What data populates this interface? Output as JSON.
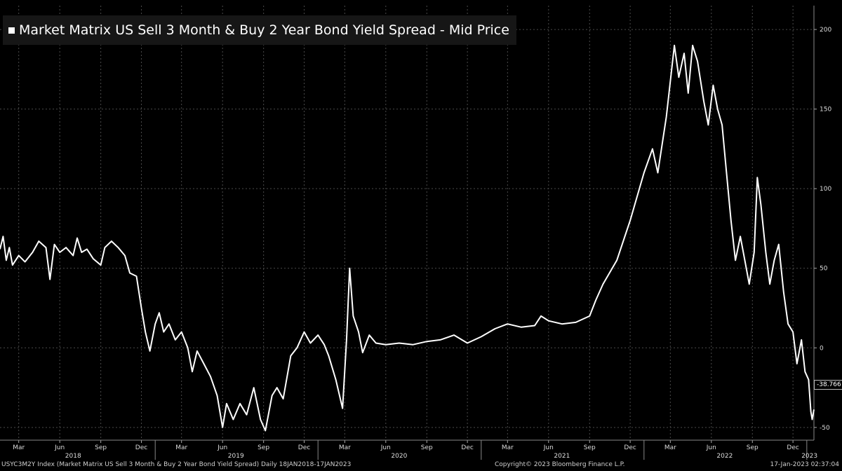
{
  "legend": {
    "title": "Market Matrix US Sell 3 Month & Buy 2 Year Bond Yield Spread - Mid Price"
  },
  "footer": {
    "left": "USYC3M2Y Index (Market Matrix US Sell 3 Month & Buy 2 Year Bond Yield Spread)  Daily 18JAN2018-17JAN2023",
    "center": "Copyright© 2023 Bloomberg Finance L.P.",
    "right": "17-Jan-2023 02:37:04"
  },
  "last_value_label": "-38.766",
  "colors": {
    "background": "#000000",
    "line": "#ffffff",
    "grid": "#4a4a4a",
    "legend_bg": "#161616"
  },
  "chart_data": {
    "type": "line",
    "title": "Market Matrix US Sell 3 Month & Buy 2 Year Bond Yield Spread - Mid Price",
    "xlim": [
      "2018-01-18",
      "2023-01-17"
    ],
    "ylim": [
      -58,
      215
    ],
    "y_ticks": [
      -50,
      0,
      50,
      100,
      150,
      200
    ],
    "y_axis_position": "right",
    "grid": true,
    "legend_position": "top-left",
    "month_ticks": [
      {
        "date": "2018-03-01",
        "label": "Mar"
      },
      {
        "date": "2018-06-01",
        "label": "Jun"
      },
      {
        "date": "2018-09-01",
        "label": "Sep"
      },
      {
        "date": "2018-12-01",
        "label": "Dec"
      },
      {
        "date": "2019-03-01",
        "label": "Mar"
      },
      {
        "date": "2019-06-01",
        "label": "Jun"
      },
      {
        "date": "2019-09-01",
        "label": "Sep"
      },
      {
        "date": "2019-12-01",
        "label": "Dec"
      },
      {
        "date": "2020-03-01",
        "label": "Mar"
      },
      {
        "date": "2020-06-01",
        "label": "Jun"
      },
      {
        "date": "2020-09-01",
        "label": "Sep"
      },
      {
        "date": "2020-12-01",
        "label": "Dec"
      },
      {
        "date": "2021-03-01",
        "label": "Mar"
      },
      {
        "date": "2021-06-01",
        "label": "Jun"
      },
      {
        "date": "2021-09-01",
        "label": "Sep"
      },
      {
        "date": "2021-12-01",
        "label": "Dec"
      },
      {
        "date": "2022-03-01",
        "label": "Mar"
      },
      {
        "date": "2022-06-01",
        "label": "Jun"
      },
      {
        "date": "2022-09-01",
        "label": "Sep"
      },
      {
        "date": "2022-12-01",
        "label": "Dec"
      }
    ],
    "year_labels": [
      {
        "date": "2018-07-01",
        "label": "2018"
      },
      {
        "date": "2019-07-01",
        "label": "2019"
      },
      {
        "date": "2020-07-01",
        "label": "2020"
      },
      {
        "date": "2021-07-01",
        "label": "2021"
      },
      {
        "date": "2022-07-01",
        "label": "2022"
      },
      {
        "date": "2023-01-07",
        "label": "2023"
      }
    ],
    "series": [
      {
        "points": [
          [
            "2018-01-18",
            62
          ],
          [
            "2018-01-25",
            70
          ],
          [
            "2018-02-01",
            55
          ],
          [
            "2018-02-08",
            63
          ],
          [
            "2018-02-15",
            52
          ],
          [
            "2018-03-01",
            58
          ],
          [
            "2018-03-15",
            54
          ],
          [
            "2018-04-01",
            60
          ],
          [
            "2018-04-15",
            67
          ],
          [
            "2018-05-01",
            63
          ],
          [
            "2018-05-10",
            43
          ],
          [
            "2018-05-20",
            65
          ],
          [
            "2018-06-01",
            60
          ],
          [
            "2018-06-15",
            63
          ],
          [
            "2018-07-01",
            58
          ],
          [
            "2018-07-10",
            69
          ],
          [
            "2018-07-20",
            60
          ],
          [
            "2018-08-01",
            62
          ],
          [
            "2018-08-15",
            56
          ],
          [
            "2018-09-01",
            52
          ],
          [
            "2018-09-10",
            63
          ],
          [
            "2018-09-25",
            67
          ],
          [
            "2018-10-10",
            63
          ],
          [
            "2018-10-25",
            58
          ],
          [
            "2018-11-05",
            47
          ],
          [
            "2018-11-20",
            45
          ],
          [
            "2018-12-01",
            25
          ],
          [
            "2018-12-10",
            10
          ],
          [
            "2018-12-20",
            -2
          ],
          [
            "2019-01-01",
            15
          ],
          [
            "2019-01-10",
            22
          ],
          [
            "2019-01-20",
            10
          ],
          [
            "2019-02-01",
            15
          ],
          [
            "2019-02-15",
            5
          ],
          [
            "2019-03-01",
            10
          ],
          [
            "2019-03-15",
            0
          ],
          [
            "2019-03-25",
            -15
          ],
          [
            "2019-04-05",
            -2
          ],
          [
            "2019-04-20",
            -10
          ],
          [
            "2019-05-05",
            -18
          ],
          [
            "2019-05-20",
            -30
          ],
          [
            "2019-06-01",
            -50
          ],
          [
            "2019-06-10",
            -35
          ],
          [
            "2019-06-25",
            -45
          ],
          [
            "2019-07-10",
            -35
          ],
          [
            "2019-07-25",
            -42
          ],
          [
            "2019-08-10",
            -25
          ],
          [
            "2019-08-25",
            -45
          ],
          [
            "2019-09-05",
            -52
          ],
          [
            "2019-09-20",
            -30
          ],
          [
            "2019-10-01",
            -25
          ],
          [
            "2019-10-15",
            -32
          ],
          [
            "2019-11-01",
            -5
          ],
          [
            "2019-11-15",
            0
          ],
          [
            "2019-12-01",
            10
          ],
          [
            "2019-12-15",
            3
          ],
          [
            "2020-01-01",
            8
          ],
          [
            "2020-01-15",
            2
          ],
          [
            "2020-01-25",
            -5
          ],
          [
            "2020-02-10",
            -20
          ],
          [
            "2020-02-25",
            -38
          ],
          [
            "2020-03-05",
            5
          ],
          [
            "2020-03-12",
            50
          ],
          [
            "2020-03-20",
            20
          ],
          [
            "2020-04-01",
            10
          ],
          [
            "2020-04-10",
            -3
          ],
          [
            "2020-04-25",
            8
          ],
          [
            "2020-05-10",
            3
          ],
          [
            "2020-06-01",
            2
          ],
          [
            "2020-07-01",
            3
          ],
          [
            "2020-08-01",
            2
          ],
          [
            "2020-09-01",
            4
          ],
          [
            "2020-10-01",
            5
          ],
          [
            "2020-11-01",
            8
          ],
          [
            "2020-12-01",
            3
          ],
          [
            "2021-01-01",
            7
          ],
          [
            "2021-02-01",
            12
          ],
          [
            "2021-03-01",
            15
          ],
          [
            "2021-04-01",
            13
          ],
          [
            "2021-05-01",
            14
          ],
          [
            "2021-05-15",
            20
          ],
          [
            "2021-06-01",
            17
          ],
          [
            "2021-07-01",
            15
          ],
          [
            "2021-08-01",
            16
          ],
          [
            "2021-09-01",
            20
          ],
          [
            "2021-09-15",
            30
          ],
          [
            "2021-10-01",
            40
          ],
          [
            "2021-11-01",
            55
          ],
          [
            "2021-12-01",
            80
          ],
          [
            "2022-01-01",
            110
          ],
          [
            "2022-01-20",
            125
          ],
          [
            "2022-02-01",
            110
          ],
          [
            "2022-02-20",
            145
          ],
          [
            "2022-03-10",
            190
          ],
          [
            "2022-03-20",
            170
          ],
          [
            "2022-04-01",
            185
          ],
          [
            "2022-04-10",
            160
          ],
          [
            "2022-04-20",
            190
          ],
          [
            "2022-05-01",
            180
          ],
          [
            "2022-05-15",
            155
          ],
          [
            "2022-05-25",
            140
          ],
          [
            "2022-06-05",
            165
          ],
          [
            "2022-06-15",
            150
          ],
          [
            "2022-06-25",
            140
          ],
          [
            "2022-07-05",
            110
          ],
          [
            "2022-07-15",
            80
          ],
          [
            "2022-07-25",
            55
          ],
          [
            "2022-08-05",
            70
          ],
          [
            "2022-08-15",
            55
          ],
          [
            "2022-08-25",
            40
          ],
          [
            "2022-09-05",
            60
          ],
          [
            "2022-09-12",
            107
          ],
          [
            "2022-09-20",
            90
          ],
          [
            "2022-10-01",
            60
          ],
          [
            "2022-10-10",
            40
          ],
          [
            "2022-10-20",
            55
          ],
          [
            "2022-10-30",
            65
          ],
          [
            "2022-11-10",
            35
          ],
          [
            "2022-11-20",
            15
          ],
          [
            "2022-12-01",
            10
          ],
          [
            "2022-12-10",
            -10
          ],
          [
            "2022-12-20",
            5
          ],
          [
            "2022-12-28",
            -15
          ],
          [
            "2023-01-05",
            -20
          ],
          [
            "2023-01-10",
            -40
          ],
          [
            "2023-01-13",
            -45
          ],
          [
            "2023-01-17",
            -38.766
          ]
        ]
      }
    ]
  }
}
